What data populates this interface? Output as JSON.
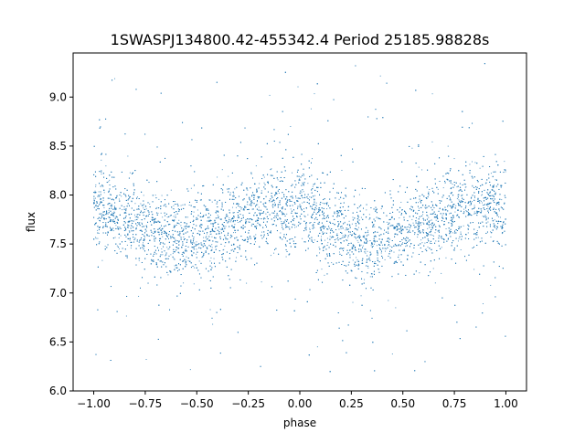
{
  "chart_data": {
    "type": "scatter",
    "title": "1SWASPJ134800.42-455342.4 Period 25185.98828s",
    "xlabel": "phase",
    "ylabel": "flux",
    "xlim": [
      -1.1,
      1.1
    ],
    "ylim": [
      6.0,
      9.45
    ],
    "xticks": [
      -1.0,
      -0.75,
      -0.5,
      -0.25,
      0.0,
      0.25,
      0.5,
      0.75,
      1.0
    ],
    "xtick_labels": [
      "−1.00",
      "−0.75",
      "−0.50",
      "−0.25",
      "0.00",
      "0.25",
      "0.50",
      "0.75",
      "1.00"
    ],
    "yticks": [
      6.0,
      6.5,
      7.0,
      7.5,
      8.0,
      8.5,
      9.0
    ],
    "ytick_labels": [
      "6.0",
      "6.5",
      "7.0",
      "7.5",
      "8.0",
      "8.5",
      "9.0"
    ],
    "grid": false,
    "marker_color": "#1f77b4",
    "series": [
      {
        "x_range": [
          -1.0,
          1.0
        ],
        "trend": {
          "x": [
            -1.0,
            -0.9,
            -0.8,
            -0.7,
            -0.6,
            -0.5,
            -0.4,
            -0.3,
            -0.2,
            -0.1,
            0.0,
            0.1,
            0.2,
            0.3,
            0.4,
            0.5,
            0.6,
            0.7,
            0.8,
            0.9,
            1.0
          ],
          "y": [
            7.85,
            7.83,
            7.72,
            7.6,
            7.56,
            7.58,
            7.64,
            7.74,
            7.84,
            7.88,
            7.85,
            7.75,
            7.62,
            7.55,
            7.57,
            7.62,
            7.72,
            7.8,
            7.86,
            7.88,
            7.85
          ]
        },
        "core_spread": 0.2,
        "outlier_range": [
          6.15,
          9.35
        ]
      }
    ]
  }
}
